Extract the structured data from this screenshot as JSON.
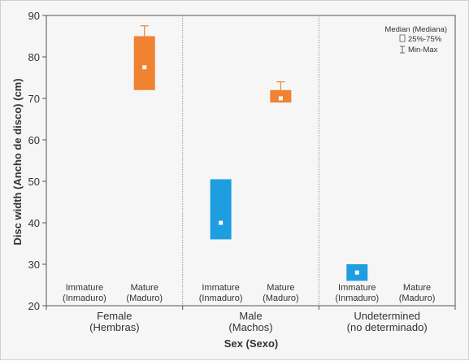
{
  "chart_data": {
    "type": "box",
    "ylabel": "Disc width (Ancho de disco) (cm)",
    "xlabel": "Sex (Sexo)",
    "ylim": [
      20,
      90
    ],
    "yticks": [
      20,
      30,
      40,
      50,
      60,
      70,
      80,
      90
    ],
    "groups": [
      {
        "label_line1": "Female",
        "label_line2": "(Hembras)"
      },
      {
        "label_line1": "Male",
        "label_line2": "(Machos)"
      },
      {
        "label_line1": "Undetermined",
        "label_line2": "(no determinado)"
      }
    ],
    "stage_labels": {
      "immature": {
        "line1": "Immature",
        "line2": "(Inmaduro)"
      },
      "mature": {
        "line1": "Mature",
        "line2": "(Maduro)"
      }
    },
    "series": [
      {
        "group": 0,
        "stage": "mature",
        "color": "#f08232",
        "q1": 72,
        "q3": 85,
        "median": 77.5,
        "min": 72,
        "max": 87.5
      },
      {
        "group": 1,
        "stage": "immature",
        "color": "#1e9ee0",
        "q1": 36,
        "q3": 50.5,
        "median": 40,
        "min": 36,
        "max": 50.5
      },
      {
        "group": 1,
        "stage": "mature",
        "color": "#f08232",
        "q1": 69,
        "q3": 72,
        "median": 70,
        "min": 69,
        "max": 74
      },
      {
        "group": 2,
        "stage": "immature",
        "color": "#1e9ee0",
        "q1": 26,
        "q3": 30,
        "median": 28,
        "min": 26,
        "max": 30
      }
    ],
    "legend": {
      "placement": "top-right",
      "median": "Median (Mediana)",
      "box": "25%-75%",
      "whisker": "Min-Max"
    }
  }
}
